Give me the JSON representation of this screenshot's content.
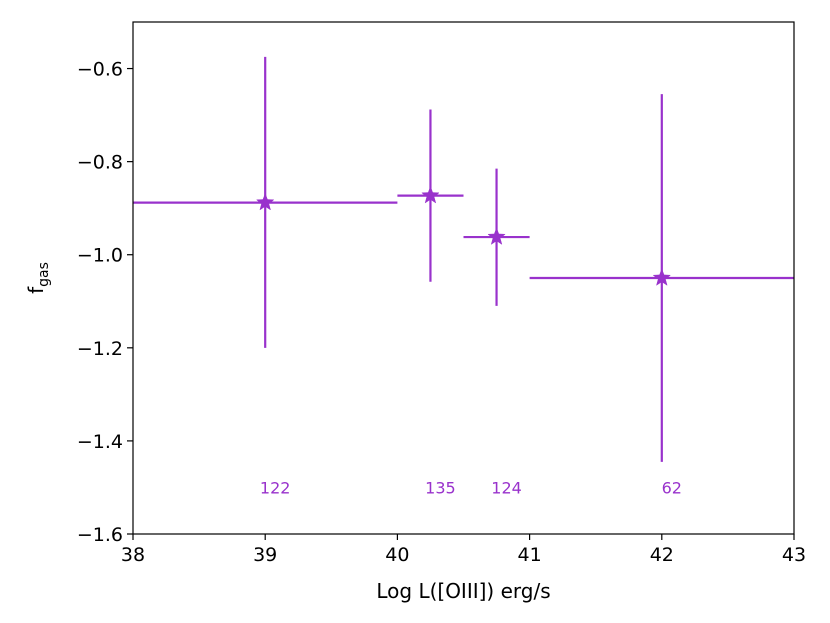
{
  "chart_data": {
    "type": "scatter",
    "xlabel": "Log L([OIII]) erg/s",
    "ylabel": {
      "main": "f",
      "sub": "gas"
    },
    "xlim": [
      38,
      43
    ],
    "ylim": [
      -1.6,
      -0.5
    ],
    "xticks": [
      38,
      39,
      40,
      41,
      42,
      43
    ],
    "xtick_labels": [
      "38",
      "39",
      "40",
      "41",
      "42",
      "43"
    ],
    "yticks": [
      -1.6,
      -1.4,
      -1.2,
      -1.0,
      -0.8,
      -0.6
    ],
    "ytick_labels": [
      "−1.6",
      "−1.4",
      "−1.2",
      "−1.0",
      "−0.8",
      "−0.6"
    ],
    "grid": false,
    "marker": "star",
    "color": "#9932CC",
    "points": [
      {
        "x": 39.0,
        "y": -0.888,
        "x_lo": 38.0,
        "x_hi": 40.0,
        "y_lo": -1.2,
        "y_hi": -0.575
      },
      {
        "x": 40.25,
        "y": -0.873,
        "x_lo": 40.0,
        "x_hi": 40.5,
        "y_lo": -1.058,
        "y_hi": -0.688
      },
      {
        "x": 40.75,
        "y": -0.962,
        "x_lo": 40.5,
        "x_hi": 41.0,
        "y_lo": -1.11,
        "y_hi": -0.815
      },
      {
        "x": 42.0,
        "y": -1.05,
        "x_lo": 41.0,
        "x_hi": 43.0,
        "y_lo": -1.445,
        "y_hi": -0.655
      }
    ],
    "annotations": [
      {
        "x": 39.0,
        "y": -1.5,
        "text": "122"
      },
      {
        "x": 40.25,
        "y": -1.5,
        "text": "135"
      },
      {
        "x": 40.75,
        "y": -1.5,
        "text": "124"
      },
      {
        "x": 42.0,
        "y": -1.5,
        "text": "62"
      }
    ]
  }
}
